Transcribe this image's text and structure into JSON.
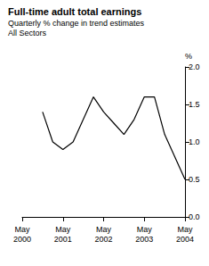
{
  "chart_data": {
    "type": "line",
    "title": "Full-time adult total earnings",
    "subtitle": [
      "Quarterly % change in trend estimates",
      "All Sectors"
    ],
    "y_label": "%",
    "categories": [
      "May 2000",
      null,
      null,
      null,
      "May 2001",
      null,
      null,
      null,
      "May 2002",
      null,
      null,
      null,
      "May 2003",
      null,
      null,
      null,
      "May 2004"
    ],
    "values": [
      null,
      null,
      1.4,
      1.0,
      0.9,
      1.0,
      1.3,
      1.6,
      1.4,
      1.25,
      1.1,
      1.3,
      1.6,
      1.6,
      1.1,
      0.8,
      0.5
    ],
    "color": "#000000",
    "ylim": [
      0,
      2
    ],
    "yticks": [
      {
        "value": 0,
        "label": "0.0"
      },
      0.5,
      {
        "value": 1,
        "label": "1.0"
      },
      1.5,
      {
        "value": 2,
        "label": "2.0"
      }
    ],
    "grid": false
  }
}
